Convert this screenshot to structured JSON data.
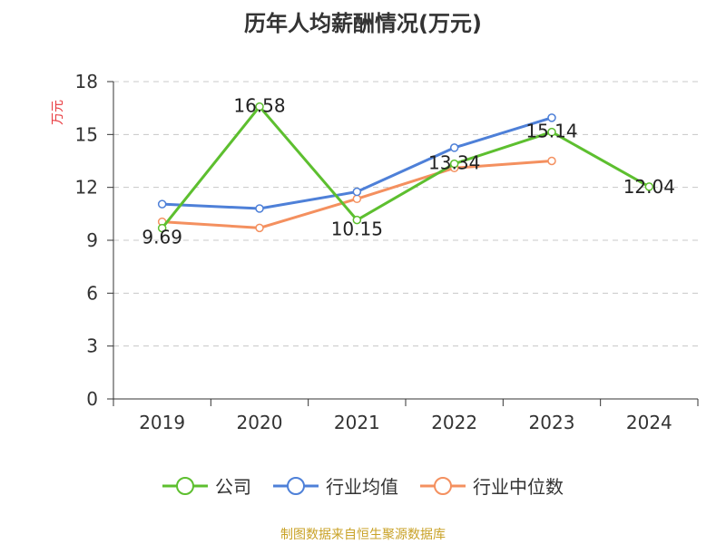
{
  "chart_data": {
    "type": "line",
    "title": "历年人均薪酬情况(万元)",
    "ylabel": "万元",
    "xlabel": "",
    "categories": [
      "2019",
      "2020",
      "2021",
      "2022",
      "2023",
      "2024"
    ],
    "ylim": [
      0,
      18
    ],
    "yticks": [
      0,
      3,
      6,
      9,
      12,
      15,
      18
    ],
    "grid": "horizontal-dashed",
    "legend_position": "bottom",
    "series": [
      {
        "name": "公司",
        "color": "#5dbf2f",
        "values": [
          9.69,
          16.58,
          10.15,
          13.34,
          15.14,
          12.04
        ],
        "labels": [
          "9.69",
          "16.58",
          "10.15",
          "13.34",
          "15.14",
          "12.04"
        ]
      },
      {
        "name": "行业均值",
        "color": "#4e80d8",
        "values": [
          11.05,
          10.8,
          11.75,
          14.25,
          15.95,
          null
        ]
      },
      {
        "name": "行业中位数",
        "color": "#f4905f",
        "values": [
          10.05,
          9.7,
          11.35,
          13.1,
          13.5,
          null
        ]
      }
    ]
  },
  "source_note": "制图数据来自恒生聚源数据库"
}
